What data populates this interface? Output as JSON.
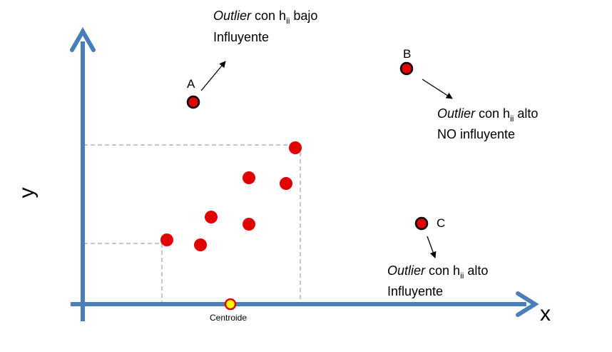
{
  "axes": {
    "x_label": "x",
    "y_label": "y",
    "color": "#4a7ebb"
  },
  "centroid_label": "Centroide",
  "colors": {
    "point_fill": "#e00000",
    "outlier_stroke": "#000000",
    "centroid_fill": "#ffff00",
    "centroid_stroke": "#e00000",
    "guide_line": "#8c8c8c"
  },
  "points": {
    "A": {
      "label": "A"
    },
    "B": {
      "label": "B"
    },
    "C": {
      "label": "C"
    }
  },
  "annotations": {
    "a": {
      "outlier": "Outlier",
      "con_h": " con h",
      "sub": "ii",
      "rest": " bajo",
      "line2": "Influyente"
    },
    "b": {
      "outlier": "Outlier",
      "con_h": " con h",
      "sub": "ii",
      "rest": " alto",
      "line2": "NO influyente"
    },
    "c": {
      "outlier": "Outlier",
      "con_h": " con h",
      "sub": "ii",
      "rest": " alto",
      "line2": "Influyente"
    }
  }
}
